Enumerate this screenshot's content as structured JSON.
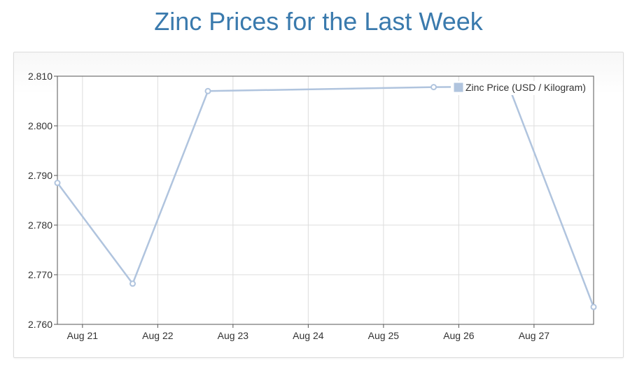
{
  "title": "Zinc Prices for the Last Week",
  "chart_data": {
    "type": "line",
    "title": "Zinc Prices for the Last Week",
    "xlabel": "",
    "ylabel": "",
    "x_ticks": [
      "Aug 21",
      "Aug 22",
      "Aug 23",
      "Aug 24",
      "Aug 25",
      "Aug 26",
      "Aug 27"
    ],
    "y_ticks": [
      "2.810",
      "2.800",
      "2.790",
      "2.780",
      "2.770",
      "2.760"
    ],
    "ylim": [
      2.76,
      2.81
    ],
    "xlim": [
      "2020-08-20T16:00",
      "2020-08-27T19:00"
    ],
    "grid": true,
    "legend_position": "top-right",
    "series": [
      {
        "name": "Zinc Price (USD / Kilogram)",
        "color": "#b0c4de",
        "points": [
          {
            "x": "2020-08-20T16:00",
            "y": 2.7885
          },
          {
            "x": "2020-08-21T16:00",
            "y": 2.7682
          },
          {
            "x": "2020-08-22T16:00",
            "y": 2.807
          },
          {
            "x": "2020-08-25T16:00",
            "y": 2.8078
          },
          {
            "x": "2020-08-26T16:00",
            "y": 2.8079
          },
          {
            "x": "2020-08-27T19:00",
            "y": 2.7635
          }
        ]
      }
    ]
  }
}
